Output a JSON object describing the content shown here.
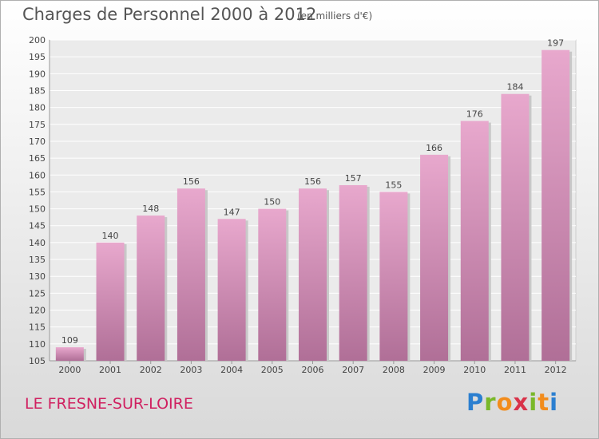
{
  "header": {
    "title": "Charges de Personnel 2000 à 2012",
    "subtitle": "(en milliers d'€)"
  },
  "footer": {
    "place": "LE FRESNE-SUR-LOIRE",
    "logo_text": "Proxiti"
  },
  "colors": {
    "bar_top": "#e8a8cd",
    "bar_bottom": "#b06f97",
    "place_text": "#d02060",
    "title_text": "#555555"
  },
  "chart_data": {
    "type": "bar",
    "title": "Charges de Personnel 2000 à 2012",
    "subtitle": "(en milliers d'€)",
    "categories": [
      "2000",
      "2001",
      "2002",
      "2003",
      "2004",
      "2005",
      "2006",
      "2007",
      "2008",
      "2009",
      "2010",
      "2011",
      "2012"
    ],
    "values": [
      109,
      140,
      148,
      156,
      147,
      150,
      156,
      157,
      155,
      166,
      176,
      184,
      197
    ],
    "ylim": [
      105,
      200
    ],
    "yticks": [
      105,
      110,
      115,
      120,
      125,
      130,
      135,
      140,
      145,
      150,
      155,
      160,
      165,
      170,
      175,
      180,
      185,
      190,
      195,
      200
    ],
    "grid": true,
    "data_labels": true
  }
}
